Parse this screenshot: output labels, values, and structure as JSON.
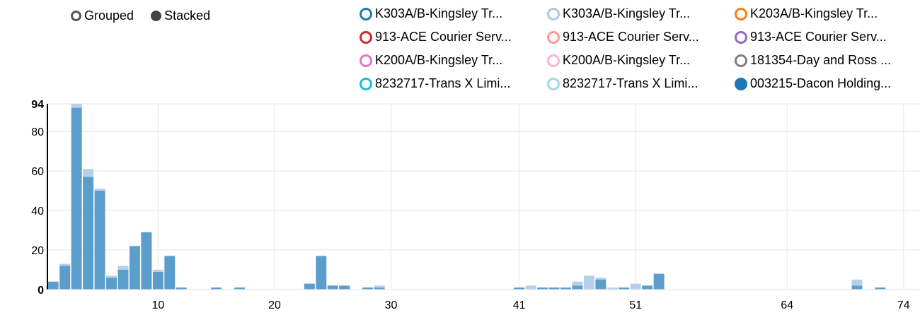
{
  "controls": {
    "grouped": "Grouped",
    "stacked": "Stacked",
    "selected": "Stacked"
  },
  "legend": [
    {
      "label": "K303A/B-Kingsley Tr...",
      "color": "#1f77b4",
      "filled": false
    },
    {
      "label": "K303A/B-Kingsley Tr...",
      "color": "#aec7e8",
      "filled": false
    },
    {
      "label": "K203A/B-Kingsley Tr...",
      "color": "#ff7f0e",
      "filled": false
    },
    {
      "label": "913-ACE Courier Serv...",
      "color": "#d62728",
      "filled": false
    },
    {
      "label": "913-ACE Courier Serv...",
      "color": "#ff9896",
      "filled": false
    },
    {
      "label": "913-ACE Courier Serv...",
      "color": "#9467bd",
      "filled": false
    },
    {
      "label": "K200A/B-Kingsley Tr...",
      "color": "#e377c2",
      "filled": false
    },
    {
      "label": "K200A/B-Kingsley Tr...",
      "color": "#f7b6d2",
      "filled": false
    },
    {
      "label": "181354-Day and Ross ...",
      "color": "#7f7f7f",
      "filled": false
    },
    {
      "label": "8232717-Trans X Limi...",
      "color": "#17becf",
      "filled": false
    },
    {
      "label": "8232717-Trans X Limi...",
      "color": "#9edae5",
      "filled": false
    },
    {
      "label": "003215-Dacon Holding...",
      "color": "#1f77b4",
      "filled": true
    }
  ],
  "chart_data": {
    "type": "bar",
    "mode": "stacked",
    "x": [
      1,
      2,
      3,
      4,
      5,
      6,
      7,
      8,
      9,
      10,
      11,
      12,
      13,
      14,
      15,
      16,
      17,
      18,
      19,
      20,
      21,
      22,
      23,
      24,
      25,
      26,
      27,
      28,
      29,
      30,
      31,
      32,
      33,
      34,
      35,
      36,
      37,
      38,
      39,
      40,
      41,
      42,
      43,
      44,
      45,
      46,
      47,
      48,
      49,
      50,
      51,
      52,
      53,
      54,
      55,
      56,
      57,
      58,
      59,
      60,
      61,
      62,
      63,
      64,
      65,
      66,
      67,
      68,
      69,
      70,
      71,
      72,
      73,
      74,
      75,
      76,
      77,
      78
    ],
    "xticks": [
      10,
      20,
      30,
      41,
      51,
      64,
      74
    ],
    "yticks": [
      0,
      20,
      40,
      60,
      80,
      94
    ],
    "ylim": [
      0,
      94
    ],
    "grid": true,
    "series": [
      {
        "name": "003215-Dacon Holding...",
        "color": "#5b9ecb",
        "values": [
          4,
          12,
          92,
          57,
          50,
          6,
          10,
          22,
          29,
          9,
          17,
          1,
          0,
          0,
          1,
          0,
          1,
          0,
          0,
          0,
          0,
          0,
          3,
          17,
          2,
          2,
          0,
          1,
          1,
          0,
          0,
          0,
          0,
          0,
          0,
          0,
          0,
          0,
          0,
          0,
          1,
          0,
          1,
          1,
          1,
          2,
          0,
          5,
          0,
          1,
          0,
          2,
          8,
          0,
          0,
          0,
          0,
          0,
          0,
          0,
          0,
          0,
          0,
          0,
          0,
          0,
          0,
          0,
          0,
          0,
          0,
          0,
          0,
          0,
          0,
          0,
          1,
          1
        ]
      },
      {
        "name": "K303A/B-Kingsley Tr...",
        "color": "#b7d0ea",
        "values": [
          0,
          1,
          2,
          4,
          1,
          1,
          2,
          0,
          0,
          1,
          0,
          0,
          0,
          0,
          0,
          0,
          0,
          0,
          0,
          0,
          0,
          0,
          0,
          0,
          0,
          0,
          0,
          0,
          1,
          0,
          0,
          0,
          0,
          0,
          0,
          0,
          0,
          0,
          0,
          0,
          0,
          2,
          0,
          0,
          0,
          2,
          7,
          1,
          1,
          0,
          3,
          0,
          0,
          0,
          0,
          0,
          0,
          0,
          0,
          0,
          0,
          0,
          0,
          0,
          0,
          0,
          0,
          0,
          0,
          0,
          0,
          0,
          0,
          0,
          0,
          0,
          0,
          0
        ]
      }
    ],
    "extra_bars": [
      {
        "x": 70,
        "values": [
          2,
          3
        ]
      },
      {
        "x": 72,
        "values": [
          1,
          0
        ]
      }
    ]
  }
}
